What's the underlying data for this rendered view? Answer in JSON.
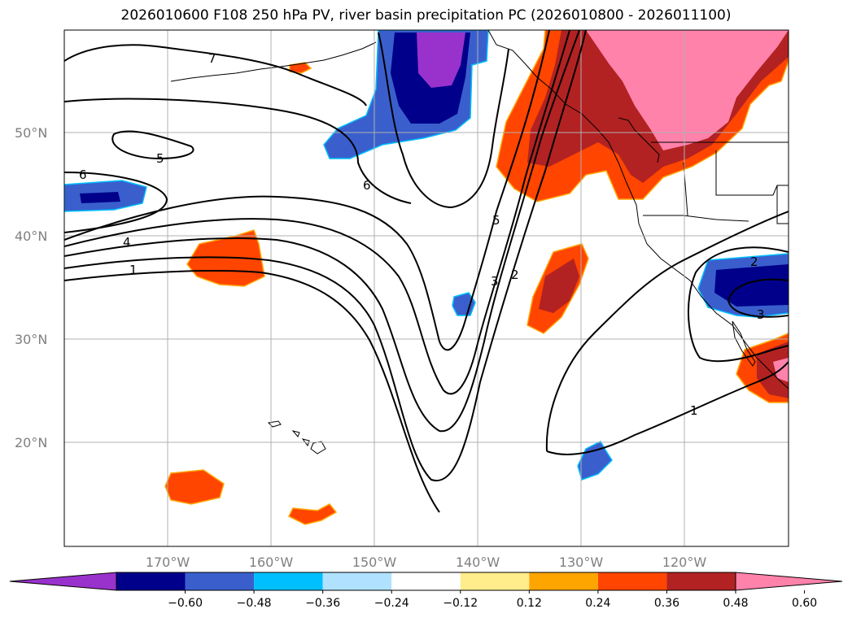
{
  "title": "2026010600 F108 250 hPa PV, river basin precipitation PC (2026010800 - 2026011100)",
  "lat_labels": [
    "50°N",
    "40°N",
    "30°N",
    "20°N"
  ],
  "lon_labels": [
    "170°W",
    "160°W",
    "150°W",
    "140°W",
    "130°W",
    "120°W"
  ],
  "contour_labels": [
    "7",
    "6",
    "5",
    "6",
    "5",
    "4",
    "1",
    "5",
    "3",
    "2",
    "2",
    "3",
    "1"
  ],
  "colorbar": {
    "ticks": [
      "−0.60",
      "−0.48",
      "−0.36",
      "−0.24",
      "−0.12",
      "0.12",
      "0.24",
      "0.36",
      "0.48",
      "0.60"
    ],
    "colors": [
      "#9932cc",
      "#00008b",
      "#3a5fcd",
      "#00bfff",
      "#b0e2ff",
      "#ffffff",
      "#ffec8b",
      "#ffa500",
      "#ff4500",
      "#b22222",
      "#ff82ab"
    ]
  },
  "colors": {
    "purple": "#9932cc",
    "navy": "#00008b",
    "royal": "#3a5fcd",
    "orangered": "#ff4500",
    "firebrick": "#b22222",
    "pink": "#ff82ab"
  }
}
